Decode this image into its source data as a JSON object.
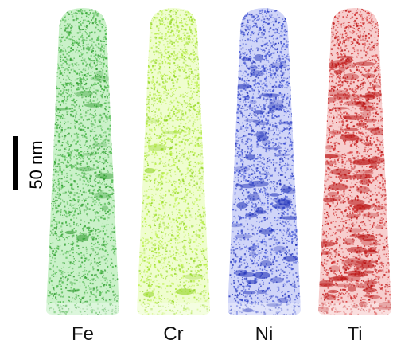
{
  "scale_bar": {
    "label": "50 nm"
  },
  "tips": [
    {
      "element": "Fe",
      "color": "#3fb33f",
      "light": "#9fe59c",
      "dark": "#2a9a2a",
      "clustering": 0.1
    },
    {
      "element": "Cr",
      "color": "#b6ef3c",
      "light": "#e2fba7",
      "dark": "#8fd41e",
      "clustering": 0.05
    },
    {
      "element": "Ni",
      "color": "#3a4fd6",
      "light": "#a9b2f3",
      "dark": "#1e2fb8",
      "clustering": 0.45
    },
    {
      "element": "Ti",
      "color": "#d22a2a",
      "light": "#f0a5a5",
      "dark": "#b80f0f",
      "clustering": 0.8
    }
  ]
}
